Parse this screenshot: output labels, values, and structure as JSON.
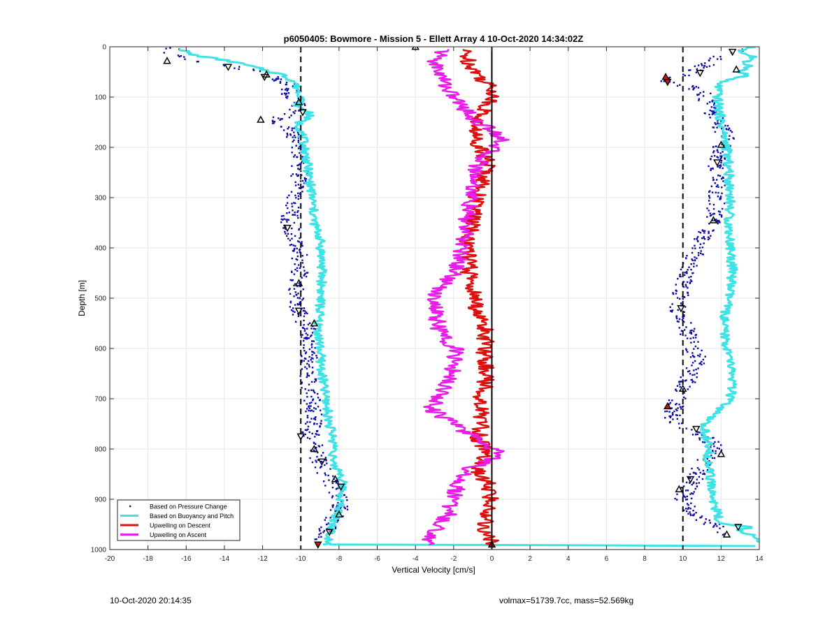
{
  "footer": {
    "timestamp": "10-Oct-2020 20:14:35",
    "volmax_mass": "volmax=51739.7cc, mass=52.569kg"
  },
  "chart_data": {
    "type": "scatter",
    "title": "p6050405: Bowmore - Mission 5 - Ellett Array 4 10-Oct-2020 14:34:02Z",
    "xlabel": "Vertical Velocity [cm/s]",
    "ylabel": "Depth [m]",
    "xlim": [
      -20,
      14
    ],
    "ylim": [
      0,
      1000
    ],
    "y_reversed": true,
    "grid": true,
    "legend_position": "bottom-left",
    "x_ticks": [
      -20,
      -18,
      -16,
      -14,
      -12,
      -10,
      -8,
      -6,
      -4,
      -2,
      0,
      2,
      4,
      6,
      8,
      10,
      12,
      14
    ],
    "y_ticks": [
      0,
      100,
      200,
      300,
      400,
      500,
      600,
      700,
      800,
      900,
      1000
    ],
    "reference_lines": [
      {
        "x": -10,
        "style": "dashed",
        "color": "#000000"
      },
      {
        "x": 10,
        "style": "dashed",
        "color": "#000000"
      },
      {
        "x": 0,
        "style": "solid",
        "color": "#000000"
      }
    ],
    "series": [
      {
        "name": "Based on Pressure Change",
        "color": "#0a0aa8",
        "marker": "dot",
        "segments": [
          {
            "depth": [
              0,
              10,
              20,
              30,
              40,
              50,
              60,
              70,
              80,
              90,
              100,
              110,
              120,
              130,
              140,
              150,
              160,
              170,
              180,
              200,
              230,
              260,
              290,
              320,
              350,
              380,
              410,
              440,
              470,
              500,
              530,
              560,
              590,
              620,
              650,
              680,
              710,
              740,
              770,
              800,
              830,
              860,
              880,
              900,
              920,
              940,
              960,
              980
            ],
            "velocity": [
              -16.5,
              -17.0,
              -16.2,
              -15.0,
              -13.5,
              -12.0,
              -11.5,
              -11.0,
              -10.3,
              -10.8,
              -10.5,
              -10.2,
              -10.1,
              -10.3,
              -11.0,
              -11.2,
              -10.6,
              -10.4,
              -10.3,
              -10.2,
              -10.0,
              -10.1,
              -10.3,
              -10.5,
              -10.6,
              -10.3,
              -10.1,
              -10.0,
              -10.2,
              -10.3,
              -10.1,
              -9.6,
              -9.5,
              -9.6,
              -9.6,
              -9.5,
              -9.4,
              -9.3,
              -9.5,
              -9.2,
              -9.0,
              -8.6,
              -8.2,
              -8.0,
              -8.0,
              -8.3,
              -8.6,
              -9.0
            ]
          },
          {
            "depth": [
              5,
              10,
              20,
              30,
              40,
              50,
              60,
              70,
              80,
              90,
              100,
              120,
              140,
              160,
              180,
              200,
              230,
              260,
              290,
              320,
              350,
              380,
              410,
              440,
              470,
              500,
              530,
              560,
              590,
              620,
              650,
              680,
              710,
              740,
              760,
              780,
              800,
              830,
              860,
              880,
              900,
              920,
              940,
              960,
              975
            ],
            "velocity": [
              13.2,
              12.6,
              12.0,
              11.5,
              11.0,
              10.5,
              9.8,
              9.0,
              10.5,
              11.0,
              11.2,
              11.4,
              11.7,
              12.0,
              12.3,
              12.0,
              11.8,
              11.7,
              11.8,
              11.7,
              11.6,
              11.0,
              10.7,
              10.3,
              10.0,
              9.8,
              9.7,
              10.2,
              10.5,
              10.8,
              10.4,
              10.1,
              9.6,
              9.4,
              10.3,
              11.3,
              11.8,
              11.0,
              10.6,
              10.2,
              10.0,
              10.3,
              11.0,
              12.0,
              12.6
            ]
          }
        ]
      },
      {
        "name": "Based on Buoyancy and Pitch",
        "color": "#3fe3e6",
        "marker": "line",
        "segments": [
          {
            "depth": [
              5,
              15,
              30,
              45,
              55,
              70,
              80,
              100,
              120,
              130,
              140,
              150,
              200,
              250,
              300,
              350,
              380,
              420,
              470,
              520,
              550,
              600,
              650,
              700,
              750,
              800,
              830,
              845,
              880,
              920,
              960,
              985,
              990
            ],
            "velocity": [
              -16.2,
              -15.8,
              -13.5,
              -12.0,
              -11.0,
              -10.3,
              -10.2,
              -9.9,
              -10.2,
              -9.5,
              -9.6,
              -10.1,
              -9.8,
              -9.6,
              -9.4,
              -9.3,
              -9.0,
              -8.9,
              -8.9,
              -9.0,
              -9.1,
              -9.0,
              -8.9,
              -8.7,
              -8.5,
              -8.2,
              -8.4,
              -7.9,
              -7.8,
              -8.0,
              -8.4,
              -8.5,
              -8.6
            ]
          },
          {
            "depth": [
              990,
              991,
              992,
              993
            ],
            "velocity": [
              -8.5,
              0.0,
              10.0,
              13.8
            ]
          },
          {
            "depth": [
              0,
              10,
              20,
              30,
              40,
              50,
              55,
              70,
              100,
              150,
              200,
              250,
              300,
              350,
              400,
              450,
              500,
              550,
              600,
              650,
              700,
              730,
              750,
              800,
              850,
              880,
              900,
              930,
              950,
              955,
              960,
              975,
              985
            ],
            "velocity": [
              13.6,
              13.0,
              13.7,
              13.2,
              13.6,
              12.8,
              13.5,
              11.9,
              11.8,
              12.0,
              12.3,
              12.4,
              12.5,
              12.4,
              12.5,
              12.6,
              12.4,
              12.1,
              12.3,
              12.6,
              12.5,
              11.6,
              11.1,
              11.3,
              11.4,
              11.5,
              11.6,
              11.8,
              12.0,
              13.8,
              13.0,
              13.8,
              13.8
            ]
          }
        ]
      },
      {
        "name": "Upwelling on Descent",
        "color": "#dd1010",
        "marker": "line",
        "segments": [
          {
            "depth": [
              5,
              30,
              60,
              90,
              120,
              150,
              180,
              210,
              240,
              270,
              300,
              330,
              360,
              390,
              420,
              450,
              480,
              510,
              540,
              570,
              600,
              630,
              660,
              690,
              720,
              750,
              780,
              810,
              840,
              870,
              900,
              930,
              960,
              990
            ],
            "velocity": [
              -1.5,
              -1.2,
              -0.6,
              0.2,
              -0.3,
              -0.8,
              -0.9,
              -0.4,
              -0.2,
              -0.5,
              -0.8,
              -0.9,
              -1.1,
              -1.3,
              -1.2,
              -1.2,
              -1.0,
              -0.9,
              -0.6,
              -0.3,
              -0.4,
              -0.3,
              -0.3,
              -0.5,
              -0.6,
              -0.5,
              -0.7,
              -0.2,
              -0.9,
              -0.2,
              -0.1,
              -0.2,
              -0.4,
              0.0
            ]
          }
        ]
      },
      {
        "name": "Upwelling on Ascent",
        "color": "#e81ee8",
        "marker": "line",
        "segments": [
          {
            "depth": [
              5,
              30,
              60,
              90,
              120,
              150,
              170,
              190,
              210,
              240,
              270,
              300,
              330,
              360,
              390,
              420,
              450,
              480,
              510,
              540,
              570,
              600,
              630,
              660,
              690,
              720,
              750,
              780,
              810,
              840,
              870,
              900,
              930,
              960,
              990
            ],
            "velocity": [
              -2.5,
              -3.0,
              -2.6,
              -2.2,
              -1.5,
              -0.8,
              0.3,
              0.5,
              -0.2,
              -0.8,
              -0.9,
              -1.1,
              -1.3,
              -1.4,
              -1.5,
              -1.7,
              -1.9,
              -2.8,
              -3.0,
              -2.9,
              -2.7,
              -1.9,
              -2.0,
              -2.2,
              -2.6,
              -3.2,
              -2.0,
              -0.8,
              0.6,
              -1.2,
              -1.8,
              -2.0,
              -2.3,
              -2.9,
              -3.5
            ]
          }
        ]
      },
      {
        "name": "",
        "color": "#000000",
        "marker": "triangle-open",
        "points": [
          {
            "depth": 28,
            "velocity": -17.0
          },
          {
            "depth": 40,
            "velocity": -13.8
          },
          {
            "depth": 55,
            "velocity": -11.8
          },
          {
            "depth": 60,
            "velocity": -11.9
          },
          {
            "depth": 110,
            "velocity": -10.1
          },
          {
            "depth": 130,
            "velocity": -9.9
          },
          {
            "depth": 145,
            "velocity": -12.1
          },
          {
            "depth": 360,
            "velocity": -10.7
          },
          {
            "depth": 470,
            "velocity": -10.1
          },
          {
            "depth": 525,
            "velocity": -10.1
          },
          {
            "depth": 550,
            "velocity": -9.3
          },
          {
            "depth": 775,
            "velocity": -10.0
          },
          {
            "depth": 800,
            "velocity": -9.3
          },
          {
            "depth": 825,
            "velocity": -8.9
          },
          {
            "depth": 860,
            "velocity": -8.2
          },
          {
            "depth": 875,
            "velocity": -7.9
          },
          {
            "depth": 930,
            "velocity": -8.0
          },
          {
            "depth": 965,
            "velocity": -8.5
          },
          {
            "depth": 0,
            "velocity": -4.0
          },
          {
            "depth": 10,
            "velocity": 12.6
          },
          {
            "depth": 45,
            "velocity": 12.8
          },
          {
            "depth": 52,
            "velocity": 10.9
          },
          {
            "depth": 195,
            "velocity": 12.0
          },
          {
            "depth": 230,
            "velocity": 11.8
          },
          {
            "depth": 345,
            "velocity": 11.6
          },
          {
            "depth": 520,
            "velocity": 9.9
          },
          {
            "depth": 680,
            "velocity": 10.0
          },
          {
            "depth": 760,
            "velocity": 10.7
          },
          {
            "depth": 810,
            "velocity": 12.0
          },
          {
            "depth": 860,
            "velocity": 10.4
          },
          {
            "depth": 880,
            "velocity": 9.8
          },
          {
            "depth": 955,
            "velocity": 12.9
          },
          {
            "depth": 970,
            "velocity": 12.3
          }
        ]
      },
      {
        "name": "",
        "color": "#dd1010",
        "marker": "triangle-filled",
        "points": [
          {
            "depth": 60,
            "velocity": 9.1
          },
          {
            "depth": 70,
            "velocity": 9.2
          },
          {
            "depth": 715,
            "velocity": 9.2
          },
          {
            "depth": 990,
            "velocity": -9.1
          },
          {
            "depth": 990,
            "velocity": 0.0
          }
        ]
      }
    ],
    "legend": [
      {
        "label": "Based on Pressure Change",
        "color": "#0a0aa8",
        "style": "dot"
      },
      {
        "label": "Based on Buoyancy and Pitch",
        "color": "#3fe3e6",
        "style": "line"
      },
      {
        "label": "Upwelling on Descent",
        "color": "#dd1010",
        "style": "line"
      },
      {
        "label": "Upwelling on Ascent",
        "color": "#e81ee8",
        "style": "line"
      }
    ]
  }
}
